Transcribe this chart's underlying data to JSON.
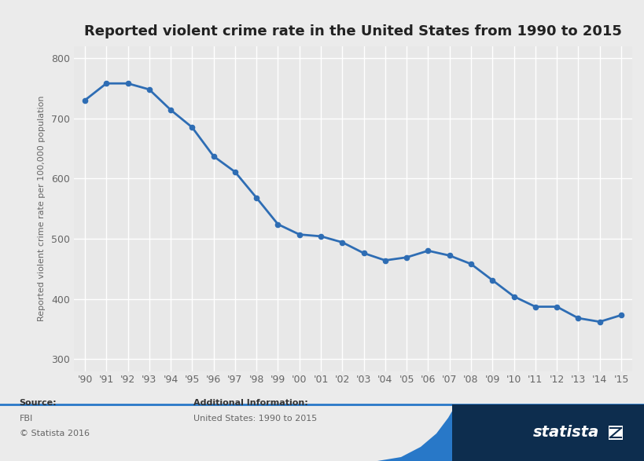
{
  "title": "Reported violent crime rate in the United States from 1990 to 2015",
  "ylabel": "Reported violent crime rate per 100,000 population",
  "years": [
    "'90",
    "'91",
    "'92",
    "'93",
    "'94",
    "'95",
    "'96",
    "'97",
    "'98",
    "'99",
    "'00",
    "'01",
    "'02",
    "'03",
    "'04",
    "'05",
    "'06",
    "'07",
    "'08",
    "'09",
    "'10",
    "'11",
    "'12",
    "'13",
    "'14",
    "'15"
  ],
  "values": [
    730,
    758,
    758,
    748,
    714,
    685,
    637,
    611,
    568,
    524,
    507,
    504,
    494,
    476,
    464,
    469,
    480,
    472,
    458,
    431,
    404,
    387,
    387,
    368,
    362,
    373
  ],
  "line_color": "#2E6DB4",
  "marker_color": "#2E6DB4",
  "background_color": "#ebebeb",
  "plot_background_color": "#e8e8e8",
  "grid_color": "#ffffff",
  "ylim_min": 280,
  "ylim_max": 820,
  "yticks": [
    300,
    400,
    500,
    600,
    700,
    800
  ],
  "source_label": "Source:",
  "source_line1": "FBI",
  "source_line2": "© Statista 2016",
  "additional_info_label": "Additional Information:",
  "additional_info_text": "United States: 1990 to 2015",
  "statista_dark_color": "#0d2d4e",
  "statista_blue_color": "#2878c8",
  "title_fontsize": 13,
  "axis_label_fontsize": 8,
  "tick_fontsize": 9,
  "footer_text_color": "#666666",
  "footer_label_color": "#333333"
}
